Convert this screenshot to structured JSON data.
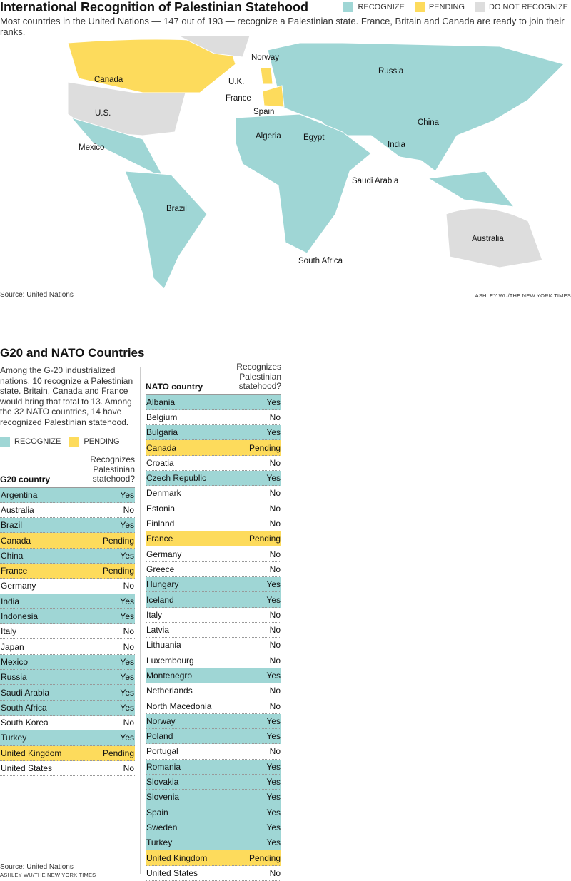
{
  "header": {
    "title": "International Recognition of Palestinian Statehood",
    "subtitle": "Most countries in the United Nations — 147 out of 193 — recognize a Palestinian state. France, Britain and Canada are ready to join their ranks."
  },
  "legend": [
    {
      "label": "RECOGNIZE",
      "color": "#9fd6d5"
    },
    {
      "label": "PENDING",
      "color": "#fddb5c"
    },
    {
      "label": "DO NOT RECOGNIZE",
      "color": "#dddddd"
    }
  ],
  "map": {
    "labels": [
      "Norway",
      "Russia",
      "Canada",
      "U.K.",
      "France",
      "Spain",
      "U.S.",
      "China",
      "Algeria",
      "Egypt",
      "Mexico",
      "India",
      "Saudi Arabia",
      "Brazil",
      "Australia",
      "South Africa"
    ],
    "source": "Source: United Nations",
    "credit": "ASHLEY WU/THE NEW YORK TIMES"
  },
  "section": {
    "title": "G20 and NATO Countries",
    "intro": "Among the G-20 industrialized nations, 10 recognize a Palestinian state. Britain, Canada and France would bring that total to 13. Among the 32 NATO countries, 14 have recognized Palestinian statehood.",
    "legend": [
      {
        "label": "RECOGNIZE",
        "color": "#9fd6d5"
      },
      {
        "label": "PENDING",
        "color": "#fddb5c"
      }
    ],
    "source": "Source: United Nations",
    "credit": "ASHLEY WU/THE NEW YORK TIMES"
  },
  "g20": {
    "col1": "G20 country",
    "col2": "Recognizes Palestinian statehood?",
    "rows": [
      [
        "Argentina",
        "Yes"
      ],
      [
        "Australia",
        "No"
      ],
      [
        "Brazil",
        "Yes"
      ],
      [
        "Canada",
        "Pending"
      ],
      [
        "China",
        "Yes"
      ],
      [
        "France",
        "Pending"
      ],
      [
        "Germany",
        "No"
      ],
      [
        "India",
        "Yes"
      ],
      [
        "Indonesia",
        "Yes"
      ],
      [
        "Italy",
        "No"
      ],
      [
        "Japan",
        "No"
      ],
      [
        "Mexico",
        "Yes"
      ],
      [
        "Russia",
        "Yes"
      ],
      [
        "Saudi Arabia",
        "Yes"
      ],
      [
        "South Africa",
        "Yes"
      ],
      [
        "South Korea",
        "No"
      ],
      [
        "Turkey",
        "Yes"
      ],
      [
        "United Kingdom",
        "Pending"
      ],
      [
        "United States",
        "No"
      ]
    ]
  },
  "nato": {
    "col1": "NATO country",
    "col2": "Recognizes Palestinian statehood?",
    "rows": [
      [
        "Albania",
        "Yes"
      ],
      [
        "Belgium",
        "No"
      ],
      [
        "Bulgaria",
        "Yes"
      ],
      [
        "Canada",
        "Pending"
      ],
      [
        "Croatia",
        "No"
      ],
      [
        "Czech Republic",
        "Yes"
      ],
      [
        "Denmark",
        "No"
      ],
      [
        "Estonia",
        "No"
      ],
      [
        "Finland",
        "No"
      ],
      [
        "France",
        "Pending"
      ],
      [
        "Germany",
        "No"
      ],
      [
        "Greece",
        "No"
      ],
      [
        "Hungary",
        "Yes"
      ],
      [
        "Iceland",
        "Yes"
      ],
      [
        "Italy",
        "No"
      ],
      [
        "Latvia",
        "No"
      ],
      [
        "Lithuania",
        "No"
      ],
      [
        "Luxembourg",
        "No"
      ],
      [
        "Montenegro",
        "Yes"
      ],
      [
        "Netherlands",
        "No"
      ],
      [
        "North Macedonia",
        "No"
      ],
      [
        "Norway",
        "Yes"
      ],
      [
        "Poland",
        "Yes"
      ],
      [
        "Portugal",
        "No"
      ],
      [
        "Romania",
        "Yes"
      ],
      [
        "Slovakia",
        "Yes"
      ],
      [
        "Slovenia",
        "Yes"
      ],
      [
        "Spain",
        "Yes"
      ],
      [
        "Sweden",
        "Yes"
      ],
      [
        "Turkey",
        "Yes"
      ],
      [
        "United Kingdom",
        "Pending"
      ],
      [
        "United States",
        "No"
      ]
    ]
  }
}
